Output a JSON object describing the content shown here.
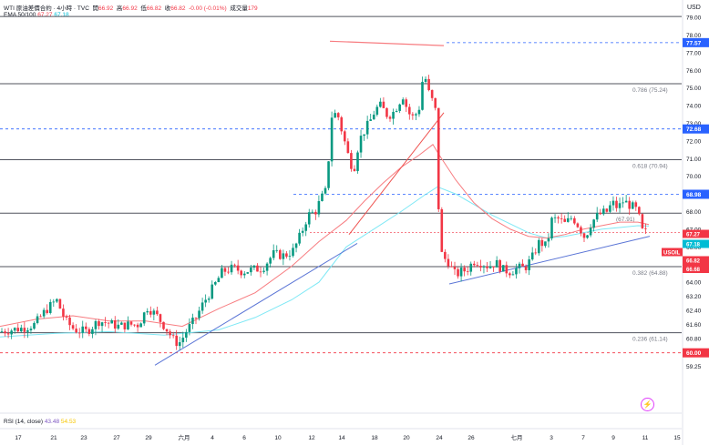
{
  "header": {
    "symbol": "WTI 原油差價合約 · 4小時 · TVC",
    "open_label": "開",
    "open": "66.92",
    "high_label": "高",
    "high": "66.92",
    "low_label": "低",
    "low": "66.82",
    "close_label": "收",
    "close": "66.82",
    "change": "-0.00 (-0.01%)",
    "volume_label": "成交量",
    "volume": "179",
    "currency": "USD"
  },
  "ema": {
    "label": "EMA 50/100",
    "v50": "67.27",
    "v100": "67.18"
  },
  "rsi": {
    "label": "RSI (14, close)",
    "v1": "43.48",
    "v2": "54.53"
  },
  "colors": {
    "up": "#089981",
    "down": "#f23645",
    "ema50": "#f77c80",
    "ema100": "#7ee8f5",
    "trend": "#5b75d6",
    "fib": "#787b86",
    "dashed_blue": "#2962ff",
    "dashed_red": "#f23645"
  },
  "chart_data": {
    "type": "candlestick",
    "yaxis": {
      "min": 59.25,
      "max": 79.0,
      "ticks": [
        "79.00",
        "78.00",
        "77.00",
        "76.00",
        "75.00",
        "74.00",
        "73.00",
        "72.00",
        "71.00",
        "70.00",
        "69.00",
        "68.00",
        "67.00",
        "66.00",
        "65.00",
        "64.00",
        "63.20",
        "62.40",
        "61.60",
        "60.80",
        "59.25"
      ]
    },
    "xaxis": {
      "labels": [
        {
          "text": "17",
          "t": 20
        },
        {
          "text": "21",
          "t": 59
        },
        {
          "text": "23",
          "t": 92
        },
        {
          "text": "27",
          "t": 128
        },
        {
          "text": "29",
          "t": 163
        },
        {
          "text": "六月",
          "t": 202
        },
        {
          "text": "4",
          "t": 233
        },
        {
          "text": "6",
          "t": 268
        },
        {
          "text": "10",
          "t": 305
        },
        {
          "text": "12",
          "t": 342
        },
        {
          "text": "14",
          "t": 375
        },
        {
          "text": "18",
          "t": 411
        },
        {
          "text": "20",
          "t": 446
        },
        {
          "text": "24",
          "t": 482
        },
        {
          "text": "26",
          "t": 517
        },
        {
          "text": "七月",
          "t": 567
        },
        {
          "text": "3",
          "t": 605
        },
        {
          "text": "7",
          "t": 640
        },
        {
          "text": "9",
          "t": 673
        },
        {
          "text": "11",
          "t": 708
        },
        {
          "text": "15",
          "t": 743
        }
      ]
    },
    "fib_levels": [
      {
        "ratio": "0.786 (75.24)",
        "price": 75.24
      },
      {
        "ratio": "0.618 (70.94)",
        "price": 70.94
      },
      {
        "ratio": "(67.91)",
        "price": 67.91
      },
      {
        "ratio": "0.382 (64.88)",
        "price": 64.88
      },
      {
        "ratio": "0.236 (61.14)",
        "price": 61.14
      }
    ],
    "top_level": 79.05,
    "dashed_levels": [
      {
        "price": 77.57,
        "label": "77.57",
        "color": "#2962ff"
      },
      {
        "price": 72.68,
        "label": "72.68",
        "color": "#2962ff"
      },
      {
        "price": 68.98,
        "label": "68.98",
        "color": "#2962ff"
      },
      {
        "price": 60.0,
        "label": "60.00",
        "color": "#f23645"
      }
    ],
    "price_tags": [
      {
        "price": 67.27,
        "label": "67.27",
        "color": "#f23645"
      },
      {
        "price": 67.18,
        "label": "67.18",
        "color": "#00bcd4"
      },
      {
        "price": 66.82,
        "label": "USOIL",
        "color": "#f23645"
      },
      {
        "price": 66.82,
        "label": "66.82",
        "color": "#f23645"
      },
      {
        "price": 66.82,
        "label": "02:21:13",
        "color": "#f23645"
      },
      {
        "price": 66.68,
        "label": "66.68",
        "color": "#f23645"
      }
    ],
    "current_price": 66.82,
    "path": [
      [
        0,
        61.2
      ],
      [
        12,
        61.3
      ],
      [
        25,
        61.4
      ],
      [
        38,
        61.6
      ],
      [
        50,
        62.4
      ],
      [
        62,
        63.0
      ],
      [
        72,
        61.8
      ],
      [
        82,
        61.3
      ],
      [
        95,
        61.2
      ],
      [
        108,
        61.8
      ],
      [
        118,
        61.7
      ],
      [
        130,
        61.5
      ],
      [
        142,
        61.6
      ],
      [
        152,
        61.6
      ],
      [
        162,
        62.6
      ],
      [
        172,
        62.1
      ],
      [
        182,
        61.4
      ],
      [
        192,
        60.6
      ],
      [
        198,
        60.6
      ],
      [
        204,
        61.2
      ],
      [
        214,
        61.9
      ],
      [
        224,
        62.9
      ],
      [
        234,
        63.7
      ],
      [
        244,
        64.6
      ],
      [
        256,
        64.8
      ],
      [
        266,
        64.6
      ],
      [
        276,
        64.7
      ],
      [
        288,
        64.8
      ],
      [
        300,
        65.6
      ],
      [
        312,
        65.5
      ],
      [
        322,
        65.8
      ],
      [
        330,
        66.7
      ],
      [
        338,
        67.8
      ],
      [
        346,
        68.0
      ],
      [
        352,
        68.7
      ],
      [
        358,
        69.2
      ],
      [
        364,
        73.4
      ],
      [
        370,
        73.6
      ],
      [
        376,
        72.4
      ],
      [
        382,
        71.2
      ],
      [
        388,
        70.3
      ],
      [
        394,
        72.0
      ],
      [
        400,
        72.6
      ],
      [
        406,
        73.1
      ],
      [
        412,
        73.8
      ],
      [
        418,
        74.0
      ],
      [
        424,
        73.5
      ],
      [
        430,
        73.5
      ],
      [
        436,
        74.0
      ],
      [
        442,
        74.6
      ],
      [
        448,
        73.6
      ],
      [
        454,
        73.3
      ],
      [
        460,
        73.9
      ],
      [
        465,
        76.0
      ],
      [
        470,
        74.8
      ],
      [
        475,
        74.2
      ],
      [
        479,
        73.5
      ],
      [
        482,
        66.5
      ],
      [
        486,
        65.2
      ],
      [
        490,
        65.4
      ],
      [
        495,
        64.8
      ],
      [
        500,
        64.4
      ],
      [
        506,
        64.6
      ],
      [
        512,
        64.7
      ],
      [
        520,
        65.2
      ],
      [
        528,
        65.1
      ],
      [
        536,
        64.9
      ],
      [
        544,
        65.1
      ],
      [
        552,
        64.7
      ],
      [
        560,
        64.6
      ],
      [
        568,
        64.8
      ],
      [
        576,
        64.8
      ],
      [
        584,
        65.4
      ],
      [
        592,
        66.3
      ],
      [
        600,
        66.0
      ],
      [
        605,
        67.5
      ],
      [
        612,
        67.6
      ],
      [
        620,
        67.3
      ],
      [
        628,
        67.7
      ],
      [
        636,
        67.1
      ],
      [
        642,
        66.5
      ],
      [
        648,
        67.3
      ],
      [
        654,
        67.7
      ],
      [
        660,
        67.9
      ],
      [
        666,
        68.0
      ],
      [
        672,
        68.5
      ],
      [
        678,
        68.2
      ],
      [
        684,
        68.6
      ],
      [
        690,
        68.4
      ],
      [
        696,
        68.2
      ],
      [
        700,
        68.0
      ],
      [
        704,
        66.9
      ],
      [
        710,
        66.8
      ]
    ],
    "ema50": [
      [
        0,
        61.5
      ],
      [
        40,
        61.9
      ],
      [
        80,
        62.1
      ],
      [
        120,
        61.8
      ],
      [
        160,
        61.8
      ],
      [
        200,
        61.5
      ],
      [
        240,
        62.5
      ],
      [
        280,
        63.4
      ],
      [
        320,
        64.9
      ],
      [
        350,
        66.3
      ],
      [
        380,
        67.5
      ],
      [
        400,
        68.6
      ],
      [
        420,
        69.6
      ],
      [
        440,
        70.5
      ],
      [
        460,
        71.2
      ],
      [
        475,
        71.8
      ],
      [
        482,
        71.2
      ],
      [
        500,
        69.8
      ],
      [
        520,
        68.5
      ],
      [
        540,
        67.6
      ],
      [
        560,
        67.0
      ],
      [
        580,
        66.6
      ],
      [
        600,
        66.5
      ],
      [
        620,
        66.7
      ],
      [
        640,
        67.0
      ],
      [
        660,
        67.2
      ],
      [
        680,
        67.4
      ],
      [
        700,
        67.4
      ],
      [
        712,
        67.27
      ]
    ],
    "ema100": [
      [
        0,
        60.9
      ],
      [
        60,
        61.1
      ],
      [
        120,
        61.2
      ],
      [
        180,
        61.0
      ],
      [
        240,
        61.3
      ],
      [
        280,
        62.0
      ],
      [
        320,
        63.0
      ],
      [
        350,
        64.0
      ],
      [
        380,
        66.0
      ],
      [
        410,
        67.0
      ],
      [
        440,
        68.0
      ],
      [
        465,
        68.9
      ],
      [
        480,
        69.4
      ],
      [
        500,
        69.0
      ],
      [
        520,
        68.4
      ],
      [
        540,
        67.8
      ],
      [
        560,
        67.3
      ],
      [
        580,
        66.8
      ],
      [
        600,
        66.5
      ],
      [
        620,
        66.6
      ],
      [
        640,
        66.8
      ],
      [
        660,
        67.0
      ],
      [
        680,
        67.1
      ],
      [
        700,
        67.2
      ],
      [
        712,
        67.18
      ]
    ],
    "trendlines": [
      {
        "from": [
          170,
          59.3
        ],
        "to": [
          392,
          66.2
        ]
      },
      {
        "from": [
          493,
          63.9
        ],
        "to": [
          713,
          66.6
        ]
      },
      {
        "from": [
          383,
          66.7
        ],
        "to": [
          487,
          73.6
        ]
      }
    ],
    "red_lines": [
      {
        "from": [
          362,
          77.65
        ],
        "to": [
          487,
          77.4
        ]
      }
    ]
  }
}
